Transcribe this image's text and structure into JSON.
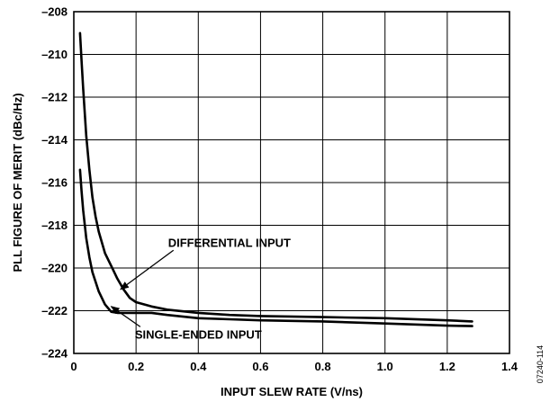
{
  "chart_data": {
    "type": "line",
    "xlabel": "INPUT SLEW RATE (V/ns)",
    "ylabel": "PLL FIGURE OF MERIT (dBc/Hz)",
    "xlim": [
      0,
      1.4
    ],
    "ylim": [
      -224,
      -208
    ],
    "x_ticks": [
      0,
      0.2,
      0.4,
      0.6,
      0.8,
      1.0,
      1.2,
      1.4
    ],
    "x_tick_labels": [
      "0",
      "0.2",
      "0.4",
      "0.6",
      "0.8",
      "1.0",
      "1.2",
      "1.4"
    ],
    "y_ticks": [
      -224,
      -222,
      -220,
      -218,
      -216,
      -214,
      -212,
      -210,
      -208
    ],
    "y_tick_labels": [
      "–224",
      "–222",
      "–220",
      "–218",
      "–216",
      "–214",
      "–212",
      "–210",
      "–208"
    ],
    "grid": true,
    "legend": "none",
    "series": [
      {
        "name": "DIFFERENTIAL INPUT",
        "x": [
          0.02,
          0.025,
          0.03,
          0.04,
          0.05,
          0.06,
          0.07,
          0.08,
          0.1,
          0.12,
          0.14,
          0.16,
          0.18,
          0.2,
          0.25,
          0.3,
          0.4,
          0.5,
          0.6,
          0.8,
          1.0,
          1.2,
          1.28
        ],
        "y": [
          -209.0,
          -210.3,
          -211.6,
          -213.8,
          -215.4,
          -216.7,
          -217.6,
          -218.3,
          -219.3,
          -219.9,
          -220.5,
          -221.0,
          -221.4,
          -221.6,
          -221.8,
          -221.95,
          -222.1,
          -222.2,
          -222.25,
          -222.3,
          -222.35,
          -222.45,
          -222.5
        ]
      },
      {
        "name": "SINGLE-ENDED INPUT",
        "x": [
          0.02,
          0.025,
          0.03,
          0.04,
          0.05,
          0.06,
          0.08,
          0.1,
          0.12,
          0.14,
          0.16,
          0.2,
          0.25,
          0.3,
          0.4,
          0.5,
          0.6,
          0.8,
          1.0,
          1.2,
          1.28
        ],
        "y": [
          -215.4,
          -216.4,
          -217.3,
          -218.6,
          -219.5,
          -220.2,
          -221.1,
          -221.7,
          -222.05,
          -222.1,
          -222.1,
          -222.1,
          -222.1,
          -222.2,
          -222.35,
          -222.4,
          -222.45,
          -222.5,
          -222.6,
          -222.7,
          -222.72
        ]
      }
    ],
    "annotations": [
      {
        "text": "DIFFERENTIAL INPUT",
        "series": "DIFFERENTIAL INPUT",
        "text_at": [
          0.5,
          -219.0
        ],
        "arrow_to": [
          0.15,
          -221.0
        ]
      },
      {
        "text": "SINGLE-ENDED INPUT",
        "series": "SINGLE-ENDED INPUT",
        "text_at": [
          0.4,
          -223.3
        ],
        "arrow_to": [
          0.12,
          -221.8
        ]
      }
    ],
    "figure_id": "07240-114"
  }
}
